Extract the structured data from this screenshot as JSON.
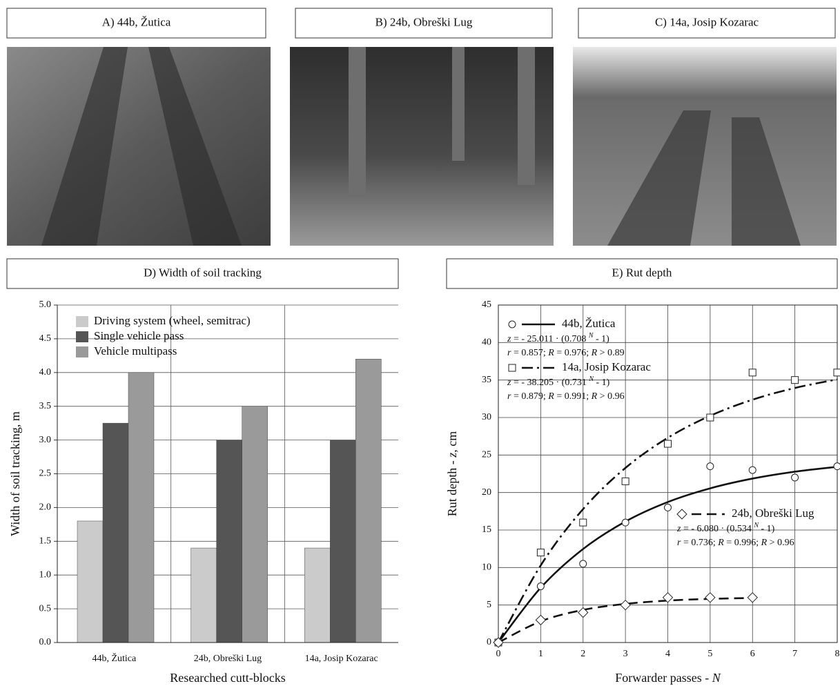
{
  "panels": [
    {
      "title": "A) 44b, Žutica"
    },
    {
      "title": "B) 24b, Obreški Lug"
    },
    {
      "title": "C) 14a, Josip Kozarac"
    }
  ],
  "chart_data": [
    {
      "type": "bar",
      "title": "D) Width of soil tracking",
      "xlabel": "Researched cutt-blocks",
      "ylabel": "Width of soil tracking, m",
      "categories": [
        "44b, Žutica",
        "24b, Obreški Lug",
        "14a, Josip Kozarac"
      ],
      "series": [
        {
          "name": "Driving system (wheel, semitrac)",
          "color": "#cbcbcb",
          "values": [
            1.8,
            1.4,
            1.4
          ]
        },
        {
          "name": "Single vehicle pass",
          "color": "#555555",
          "values": [
            3.25,
            3.0,
            3.0
          ]
        },
        {
          "name": "Vehicle multipass",
          "color": "#9a9a9a",
          "values": [
            4.0,
            3.5,
            4.2
          ]
        }
      ],
      "ylim": [
        0,
        5
      ],
      "yticks": [
        {
          "value": 0,
          "label": "0.0"
        },
        {
          "value": 0.5,
          "label": "0.5"
        },
        {
          "value": 1,
          "label": "1.0"
        },
        {
          "value": 1.5,
          "label": "1.5"
        },
        {
          "value": 2,
          "label": "2.0"
        },
        {
          "value": 2.5,
          "label": "2.5"
        },
        {
          "value": 3,
          "label": "3.0"
        },
        {
          "value": 3.5,
          "label": "3.5"
        },
        {
          "value": 4,
          "label": "4.0"
        },
        {
          "value": 4.5,
          "label": "4.5"
        },
        {
          "value": 5,
          "label": "5.0"
        }
      ],
      "grid": true,
      "legend": "upper left"
    },
    {
      "type": "scatter",
      "title": "E) Rut depth",
      "xlabel": [
        "Forwarder passes  - ",
        "N"
      ],
      "ylabel": [
        "Rut depth  - ",
        "z",
        ", cm"
      ],
      "xlim": [
        0,
        8
      ],
      "xticks": [
        0,
        1,
        2,
        3,
        4,
        5,
        6,
        7,
        8
      ],
      "ylim": [
        0,
        45
      ],
      "yticks": [
        0,
        5,
        10,
        15,
        20,
        25,
        30,
        35,
        40,
        45
      ],
      "grid": true,
      "series": [
        {
          "name": "44b, Žutica",
          "marker": "circle",
          "line_style": "solid",
          "x": [
            0,
            1,
            2,
            3,
            4,
            5,
            6,
            7,
            8
          ],
          "values": [
            0,
            7.5,
            10.5,
            16,
            18,
            23.5,
            23,
            22,
            23.5
          ],
          "fit_x": [
            0,
            1,
            2,
            3,
            4,
            5,
            6,
            7,
            8
          ],
          "fit_values": [
            0,
            7.3,
            12.47,
            16.13,
            18.73,
            20.56,
            21.86,
            22.78,
            23.43
          ],
          "equation": [
            "z",
            " = - 25.011 · (0.708 ",
            "N",
            " - 1)"
          ],
          "stats": [
            "r",
            " = 0.857;  ",
            "R",
            " = 0.976;  ",
            "R",
            " > 0.89"
          ]
        },
        {
          "name": "14a, Josip Kozarac",
          "marker": "square",
          "line_style": "dashdot",
          "x": [
            0,
            1,
            2,
            3,
            4,
            5,
            6,
            7,
            8
          ],
          "values": [
            0,
            12,
            16,
            21.5,
            26.5,
            30,
            36,
            35,
            36
          ],
          "fit_x": [
            0,
            1,
            2,
            3,
            4,
            5,
            6,
            7,
            8
          ],
          "fit_values": [
            0,
            10.28,
            17.79,
            23.28,
            27.3,
            30.23,
            32.38,
            33.94,
            35.09
          ],
          "equation": [
            "z",
            " = - 38.205 · (0.731 ",
            "N",
            " - 1)"
          ],
          "stats": [
            "r",
            " = 0.879;  ",
            "R",
            " = 0.991;  ",
            "R",
            " > 0.96"
          ]
        },
        {
          "name": "24b, Obreški Lug",
          "marker": "diamond",
          "line_style": "dashed",
          "x": [
            0,
            1,
            2,
            3,
            4,
            5,
            6
          ],
          "values": [
            0,
            3,
            4,
            5,
            6,
            6,
            6
          ],
          "fit_x": [
            0,
            1,
            2,
            3,
            4,
            5,
            6
          ],
          "fit_values": [
            0,
            2.83,
            4.35,
            5.15,
            5.59,
            5.82,
            5.94
          ],
          "equation": [
            "z",
            " = - 6.080 · (0.534 ",
            "N",
            " - 1)"
          ],
          "stats": [
            "r",
            " = 0.736;  ",
            "R",
            " = 0.996;  ",
            "R",
            " > 0.96"
          ]
        }
      ]
    }
  ]
}
